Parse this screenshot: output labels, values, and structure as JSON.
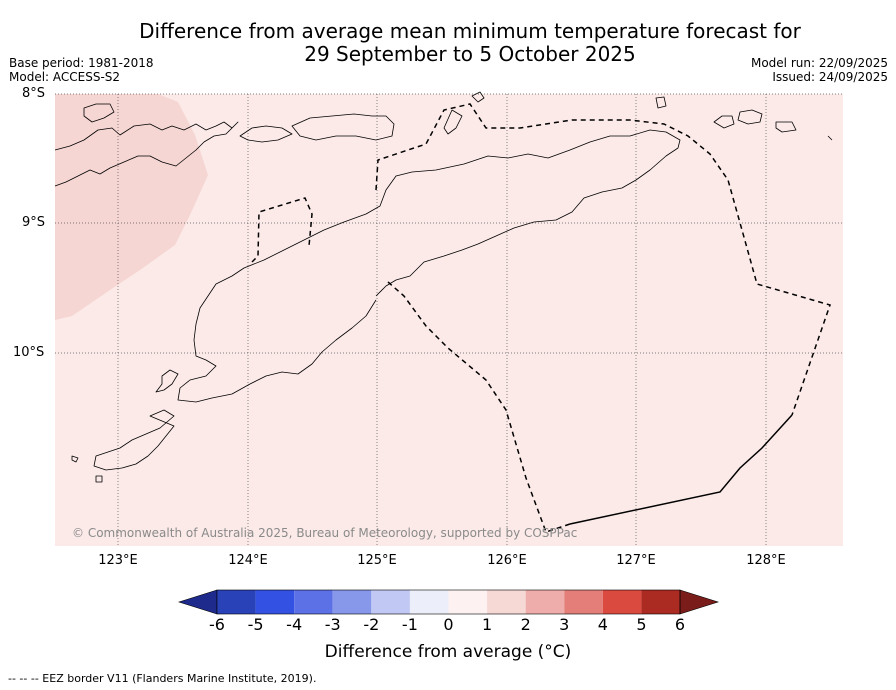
{
  "header": {
    "title_line1": "Difference from average mean minimum temperature forecast for",
    "title_line2": "29 September to 5 October 2025",
    "base_period": "Base period: 1981-2018",
    "model": "Model: ACCESS-S2",
    "model_run": "Model run: 22/09/2025",
    "issued": "Issued: 24/09/2025"
  },
  "map": {
    "lat_labels": [
      "8°S",
      "9°S",
      "10°S"
    ],
    "lon_labels": [
      "123°E",
      "124°E",
      "125°E",
      "126°E",
      "127°E",
      "128°E"
    ],
    "copyright": "© Commonwealth of Australia 2025, Bureau of Meteorology, supported by COSPPac",
    "colors": {
      "background_anomaly": "#fbeae8",
      "warmer_patch": "#f5d6d3",
      "grid": "#555555",
      "coast": "#000000"
    }
  },
  "colorbar": {
    "ticks": [
      "-6",
      "-5",
      "-4",
      "-3",
      "-2",
      "-1",
      "0",
      "1",
      "2",
      "3",
      "4",
      "5",
      "6"
    ],
    "colors": [
      "#1e2b8c",
      "#2a42b8",
      "#3352e3",
      "#5c71e6",
      "#8798ea",
      "#c0c8f3",
      "#eceff9",
      "#fdf2f1",
      "#f6d8d4",
      "#eeadaa",
      "#e37f78",
      "#db4a3f",
      "#ab2a22",
      "#7a1c1a"
    ],
    "label": "Difference from average (°C)"
  },
  "footnote": "--  --  -- EEZ border V11 (Flanders Marine Institute, 2019)."
}
